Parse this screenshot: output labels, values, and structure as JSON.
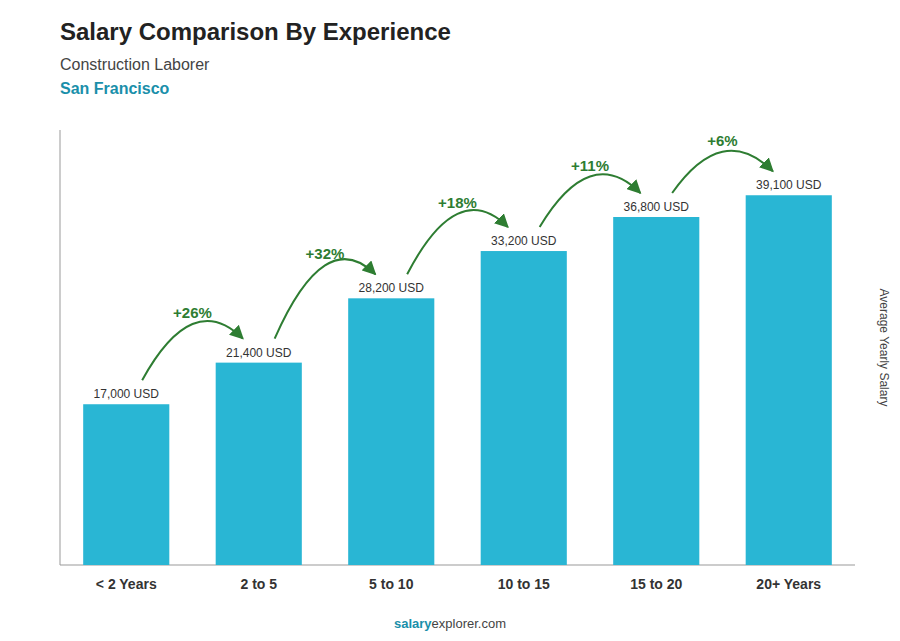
{
  "chart_data": {
    "type": "bar",
    "title": "Salary Comparison By Experience",
    "subtitle": [
      "Construction Laborer",
      "San Francisco"
    ],
    "y_label": "Average Yearly Salary",
    "categories": [
      "< 2 Years",
      "2 to 5",
      "5 to 10",
      "10 to 15",
      "15 to 20",
      "20+ Years"
    ],
    "values": [
      17000,
      21400,
      28200,
      33200,
      36800,
      39100
    ],
    "value_labels": [
      "17,000 USD",
      "21,400 USD",
      "28,200 USD",
      "33,200 USD",
      "36,800 USD",
      "39,100 USD"
    ],
    "data_labels": true,
    "annotations": [
      "+26%",
      "+32%",
      "+18%",
      "+11%",
      "+6%"
    ],
    "footer": [
      "salary",
      "explorer.com"
    ],
    "color": "#29b6d4",
    "ylim": [
      0,
      46000
    ],
    "tick_labels": "x",
    "grid": false
  }
}
